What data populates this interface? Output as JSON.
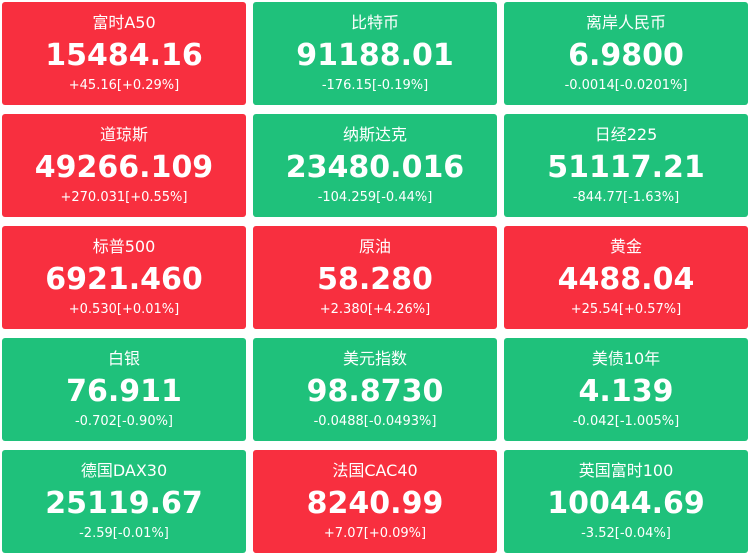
{
  "tiles": [
    {
      "name": "富时A50",
      "price": "15484.16",
      "change": "+45.16[+0.29%]",
      "color": "#f82f3f"
    },
    {
      "name": "比特币",
      "price": "91188.01",
      "change": "-176.15[-0.19%]",
      "color": "#1fc17b"
    },
    {
      "name": "离岸人民币",
      "price": "6.9800",
      "change": "-0.0014[-0.0201%]",
      "color": "#1fc17b"
    },
    {
      "name": "道琼斯",
      "price": "49266.109",
      "change": "+270.031[+0.55%]",
      "color": "#f82f3f"
    },
    {
      "name": "纳斯达克",
      "price": "23480.016",
      "change": "-104.259[-0.44%]",
      "color": "#1fc17b"
    },
    {
      "name": "日经225",
      "price": "51117.21",
      "change": "-844.77[-1.63%]",
      "color": "#1fc17b"
    },
    {
      "name": "标普500",
      "price": "6921.460",
      "change": "+0.530[+0.01%]",
      "color": "#f82f3f"
    },
    {
      "name": "原油",
      "price": "58.280",
      "change": "+2.380[+4.26%]",
      "color": "#f82f3f"
    },
    {
      "name": "黄金",
      "price": "4488.04",
      "change": "+25.54[+0.57%]",
      "color": "#f82f3f"
    },
    {
      "name": "白银",
      "price": "76.911",
      "change": "-0.702[-0.90%]",
      "color": "#1fc17b"
    },
    {
      "name": "美元指数",
      "price": "98.8730",
      "change": "-0.0488[-0.0493%]",
      "color": "#1fc17b"
    },
    {
      "name": "美债10年",
      "price": "4.139",
      "change": "-0.042[-1.005%]",
      "color": "#1fc17b"
    },
    {
      "name": "德国DAX30",
      "price": "25119.67",
      "change": "-2.59[-0.01%]",
      "color": "#1fc17b"
    },
    {
      "name": "法国CAC40",
      "price": "8240.99",
      "change": "+7.07[+0.09%]",
      "color": "#f82f3f"
    },
    {
      "name": "英国富时100",
      "price": "10044.69",
      "change": "-3.52[-0.04%]",
      "color": "#1fc17b"
    }
  ]
}
